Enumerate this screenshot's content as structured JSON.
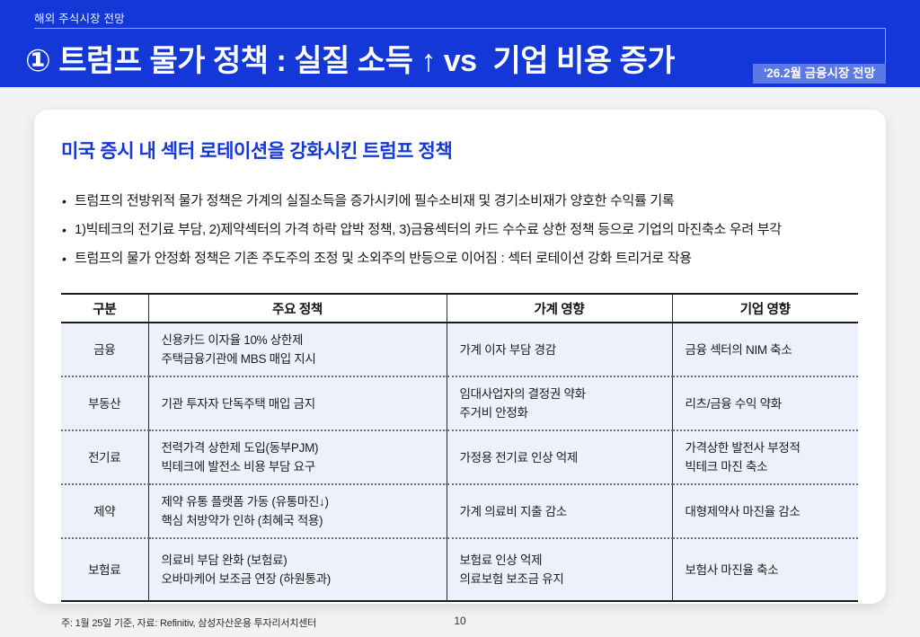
{
  "header": {
    "eyebrow": "해외 주식시장 전망",
    "title": "① 트럼프 물가 정책 : 실질 소득 ↑ vs  기업 비용 증가",
    "badge": "'26.2월 금융시장 전망"
  },
  "colors": {
    "header_blue": "#1437d7",
    "badge_blue": "#5b79e3",
    "accent_blue": "#1437d7",
    "table_row_bg": "#edf1fb"
  },
  "card": {
    "title": "미국 증시 내 섹터 로테이션을 강화시킨 트럼프 정책",
    "bullets": [
      "트럼프의 전방위적 물가 정책은 가계의 실질소득을 증가시키에 필수소비재 및 경기소비재가 양호한 수익률 기록",
      "1)빅테크의 전기료 부담, 2)제약섹터의 가격 하락 압박 정책, 3)금융섹터의 카드 수수료 상한 정책 등으로 기업의 마진축소 우려 부각",
      "트럼프의 물가 안정화 정책은 기존 주도주의 조정 및 소외주의 반등으로 이어짐 : 섹터 로테이션 강화 트리거로 작용"
    ],
    "table": {
      "columns": [
        "구분",
        "주요 정책",
        "가계 영향",
        "기업 영향"
      ],
      "rows": [
        {
          "category": "금융",
          "policy": [
            "신용카드 이자율 10% 상한제",
            "주택금융기관에 MBS 매입 지시"
          ],
          "household": [
            "가계 이자 부담 경감"
          ],
          "corporate": [
            "금융 섹터의 NIM 축소"
          ]
        },
        {
          "category": "부동산",
          "policy": [
            "기관 투자자 단독주택 매입 금지"
          ],
          "household": [
            "임대사업자의 결정권 약화",
            "주거비 안정화"
          ],
          "corporate": [
            "리츠/금융 수익 약화"
          ]
        },
        {
          "category": "전기료",
          "policy": [
            "전력가격 상한제 도입(동부PJM)",
            "빅테크에 발전소 비용 부담 요구"
          ],
          "household": [
            "가정용 전기료 인상 억제"
          ],
          "corporate": [
            "가격상한 발전사 부정적",
            "빅테크 마진 축소"
          ]
        },
        {
          "category": "제약",
          "policy": [
            "제약 유통 플랫폼 가동 (유통마진↓)",
            "핵심 처방약가 인하 (최혜국 적용)"
          ],
          "household": [
            "가계 의료비 지출 감소"
          ],
          "corporate": [
            "대형제약사 마진율 감소"
          ]
        },
        {
          "category": "보험료",
          "policy": [
            "의료비 부담 완화 (보험료)",
            "오바마케어 보조금 연장 (하원통과)"
          ],
          "household": [
            "보험료 인상 억제",
            "의료보험 보조금 유지"
          ],
          "corporate": [
            "보험사 마진율 축소"
          ]
        }
      ]
    },
    "footnote": "주: 1월 25일 기준, 자료: Refinitiv, 삼성자산운용 투자리서치센터"
  },
  "footer": {
    "page_number": "10"
  }
}
